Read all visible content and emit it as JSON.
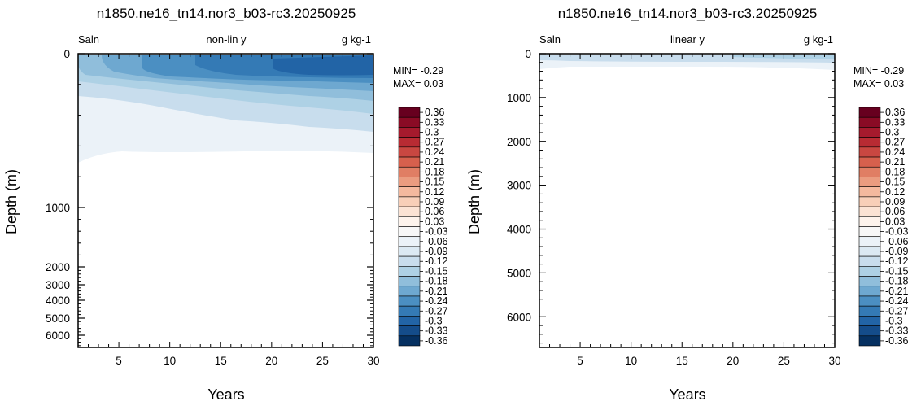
{
  "chart_data": [
    {
      "type": "contour",
      "title": "n1850.ne16_tn14.nor3_b03-rc3.20250925",
      "left_label": "Saln",
      "center_label": "non-lin y",
      "right_label": "g kg-1",
      "xlabel": "Years",
      "ylabel": "Depth (m)",
      "xlim": [
        1,
        30
      ],
      "x_ticks": [
        "5",
        "10",
        "15",
        "20",
        "25",
        "30"
      ],
      "y_scale": "non-linear",
      "y_ticks": [
        "0",
        "1000",
        "2000",
        "3000",
        "4000",
        "5000",
        "6000"
      ],
      "y_reversed": true,
      "min_text": "MIN= -0.29",
      "max_text": "MAX=  0.03"
    },
    {
      "type": "contour",
      "title": "n1850.ne16_tn14.nor3_b03-rc3.20250925",
      "left_label": "Saln",
      "center_label": "linear y",
      "right_label": "g kg-1",
      "xlabel": "Years",
      "ylabel": "Depth (m)",
      "xlim": [
        1,
        30
      ],
      "x_ticks": [
        "5",
        "10",
        "15",
        "20",
        "25",
        "30"
      ],
      "y_scale": "linear",
      "ylim": [
        0,
        6700
      ],
      "y_ticks": [
        "0",
        "1000",
        "2000",
        "3000",
        "4000",
        "5000",
        "6000"
      ],
      "y_reversed": true,
      "min_text": "MIN= -0.29",
      "max_text": "MAX=  0.03"
    }
  ],
  "colorbar": {
    "labels": [
      "0.36",
      "0.33",
      "0.3",
      "0.27",
      "0.24",
      "0.21",
      "0.18",
      "0.15",
      "0.12",
      "0.09",
      "0.06",
      "0.03",
      "-0.03",
      "-0.06",
      "-0.09",
      "-0.12",
      "-0.15",
      "-0.18",
      "-0.21",
      "-0.24",
      "-0.27",
      "-0.3",
      "-0.33",
      "-0.36"
    ],
    "colors": [
      "#67001f",
      "#8a0b25",
      "#a51a2d",
      "#b82b33",
      "#c94741",
      "#d6604d",
      "#e07e64",
      "#ea9c80",
      "#f4b99e",
      "#f8cfb8",
      "#fbe3d4",
      "#fdf3ec",
      "#f7f7f7",
      "#ebf2f8",
      "#dbe9f3",
      "#c8dded",
      "#aed1e5",
      "#90bedb",
      "#6ea8d0",
      "#4b8fc2",
      "#347ab5",
      "#2264a6",
      "#144c8a",
      "#053061"
    ]
  }
}
